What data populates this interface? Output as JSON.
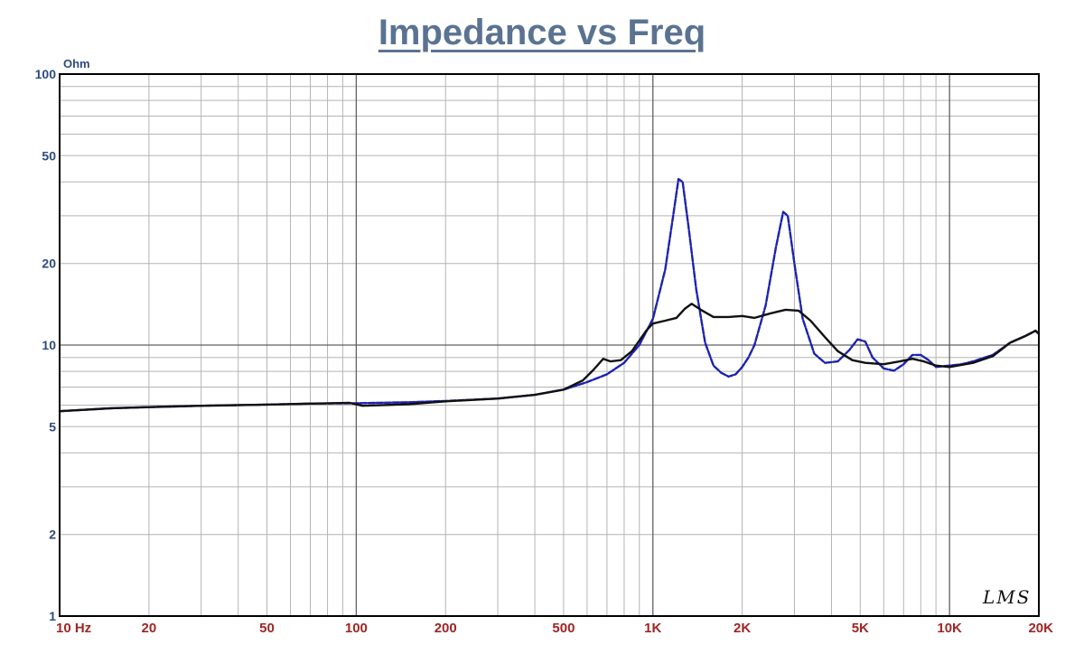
{
  "chart_data": {
    "type": "line",
    "title": "Impedance vs Freq",
    "ylabel": "Ohm",
    "x_scale": "log",
    "y_scale": "log",
    "xlim": [
      10,
      20000
    ],
    "ylim": [
      1,
      100
    ],
    "grid": true,
    "x_ticks": [
      {
        "value": 10,
        "label": "10  Hz"
      },
      {
        "value": 20,
        "label": "20"
      },
      {
        "value": 50,
        "label": "50"
      },
      {
        "value": 100,
        "label": "100"
      },
      {
        "value": 200,
        "label": "200"
      },
      {
        "value": 500,
        "label": "500"
      },
      {
        "value": 1000,
        "label": "1K"
      },
      {
        "value": 2000,
        "label": "2K"
      },
      {
        "value": 5000,
        "label": "5K"
      },
      {
        "value": 10000,
        "label": "10K"
      },
      {
        "value": 20000,
        "label": "20K"
      }
    ],
    "y_ticks": [
      {
        "value": 1,
        "label": "1"
      },
      {
        "value": 2,
        "label": "2"
      },
      {
        "value": 5,
        "label": "5"
      },
      {
        "value": 10,
        "label": "10"
      },
      {
        "value": 20,
        "label": "20"
      },
      {
        "value": 50,
        "label": "50"
      },
      {
        "value": 100,
        "label": "100"
      }
    ],
    "series": [
      {
        "color": "#1c22b0",
        "style": "dashed",
        "points": [
          [
            10,
            5.7
          ],
          [
            15,
            5.85
          ],
          [
            20,
            5.9
          ],
          [
            30,
            5.97
          ],
          [
            50,
            6.03
          ],
          [
            70,
            6.08
          ],
          [
            100,
            6.1
          ],
          [
            150,
            6.15
          ],
          [
            200,
            6.22
          ],
          [
            300,
            6.35
          ],
          [
            400,
            6.55
          ],
          [
            500,
            6.85
          ],
          [
            600,
            7.3
          ],
          [
            700,
            7.8
          ],
          [
            800,
            8.6
          ],
          [
            900,
            10.0
          ],
          [
            1000,
            12.5
          ],
          [
            1100,
            19
          ],
          [
            1170,
            30
          ],
          [
            1220,
            41
          ],
          [
            1260,
            40
          ],
          [
            1320,
            27
          ],
          [
            1400,
            16
          ],
          [
            1500,
            10.2
          ],
          [
            1600,
            8.4
          ],
          [
            1700,
            7.9
          ],
          [
            1800,
            7.65
          ],
          [
            1900,
            7.8
          ],
          [
            2000,
            8.3
          ],
          [
            2100,
            9.0
          ],
          [
            2200,
            10.0
          ],
          [
            2400,
            14
          ],
          [
            2600,
            23
          ],
          [
            2750,
            31
          ],
          [
            2850,
            30
          ],
          [
            3000,
            20
          ],
          [
            3200,
            12.5
          ],
          [
            3500,
            9.3
          ],
          [
            3800,
            8.6
          ],
          [
            4200,
            8.7
          ],
          [
            4600,
            9.6
          ],
          [
            4900,
            10.5
          ],
          [
            5200,
            10.3
          ],
          [
            5500,
            9.0
          ],
          [
            6000,
            8.2
          ],
          [
            6500,
            8.05
          ],
          [
            7000,
            8.5
          ],
          [
            7500,
            9.2
          ],
          [
            8000,
            9.2
          ],
          [
            8500,
            8.8
          ],
          [
            9000,
            8.3
          ],
          [
            10000,
            8.4
          ],
          [
            11000,
            8.5
          ],
          [
            12000,
            8.7
          ],
          [
            14000,
            9.2
          ],
          [
            16000,
            10.2
          ],
          [
            18000,
            10.8
          ],
          [
            19500,
            11.3
          ],
          [
            20000,
            11.0
          ]
        ]
      },
      {
        "color": "#111111",
        "style": "solid",
        "points": [
          [
            10,
            5.7
          ],
          [
            15,
            5.85
          ],
          [
            20,
            5.9
          ],
          [
            30,
            5.97
          ],
          [
            50,
            6.03
          ],
          [
            70,
            6.08
          ],
          [
            95,
            6.12
          ],
          [
            105,
            5.97
          ],
          [
            150,
            6.05
          ],
          [
            200,
            6.2
          ],
          [
            300,
            6.35
          ],
          [
            400,
            6.55
          ],
          [
            500,
            6.85
          ],
          [
            580,
            7.4
          ],
          [
            630,
            8.1
          ],
          [
            680,
            8.9
          ],
          [
            720,
            8.7
          ],
          [
            780,
            8.8
          ],
          [
            850,
            9.5
          ],
          [
            950,
            11.3
          ],
          [
            1000,
            12.0
          ],
          [
            1100,
            12.3
          ],
          [
            1200,
            12.6
          ],
          [
            1280,
            13.6
          ],
          [
            1350,
            14.2
          ],
          [
            1450,
            13.5
          ],
          [
            1600,
            12.7
          ],
          [
            1800,
            12.7
          ],
          [
            2000,
            12.8
          ],
          [
            2200,
            12.6
          ],
          [
            2500,
            13.1
          ],
          [
            2800,
            13.5
          ],
          [
            3100,
            13.4
          ],
          [
            3400,
            12.3
          ],
          [
            3800,
            10.7
          ],
          [
            4200,
            9.5
          ],
          [
            4700,
            8.8
          ],
          [
            5200,
            8.6
          ],
          [
            6000,
            8.5
          ],
          [
            6800,
            8.7
          ],
          [
            7500,
            8.9
          ],
          [
            8200,
            8.7
          ],
          [
            9000,
            8.4
          ],
          [
            10000,
            8.3
          ],
          [
            12000,
            8.6
          ],
          [
            14000,
            9.1
          ],
          [
            16000,
            10.2
          ],
          [
            18000,
            10.8
          ],
          [
            19500,
            11.3
          ],
          [
            20000,
            11.0
          ]
        ]
      }
    ]
  },
  "watermark": "LMS"
}
